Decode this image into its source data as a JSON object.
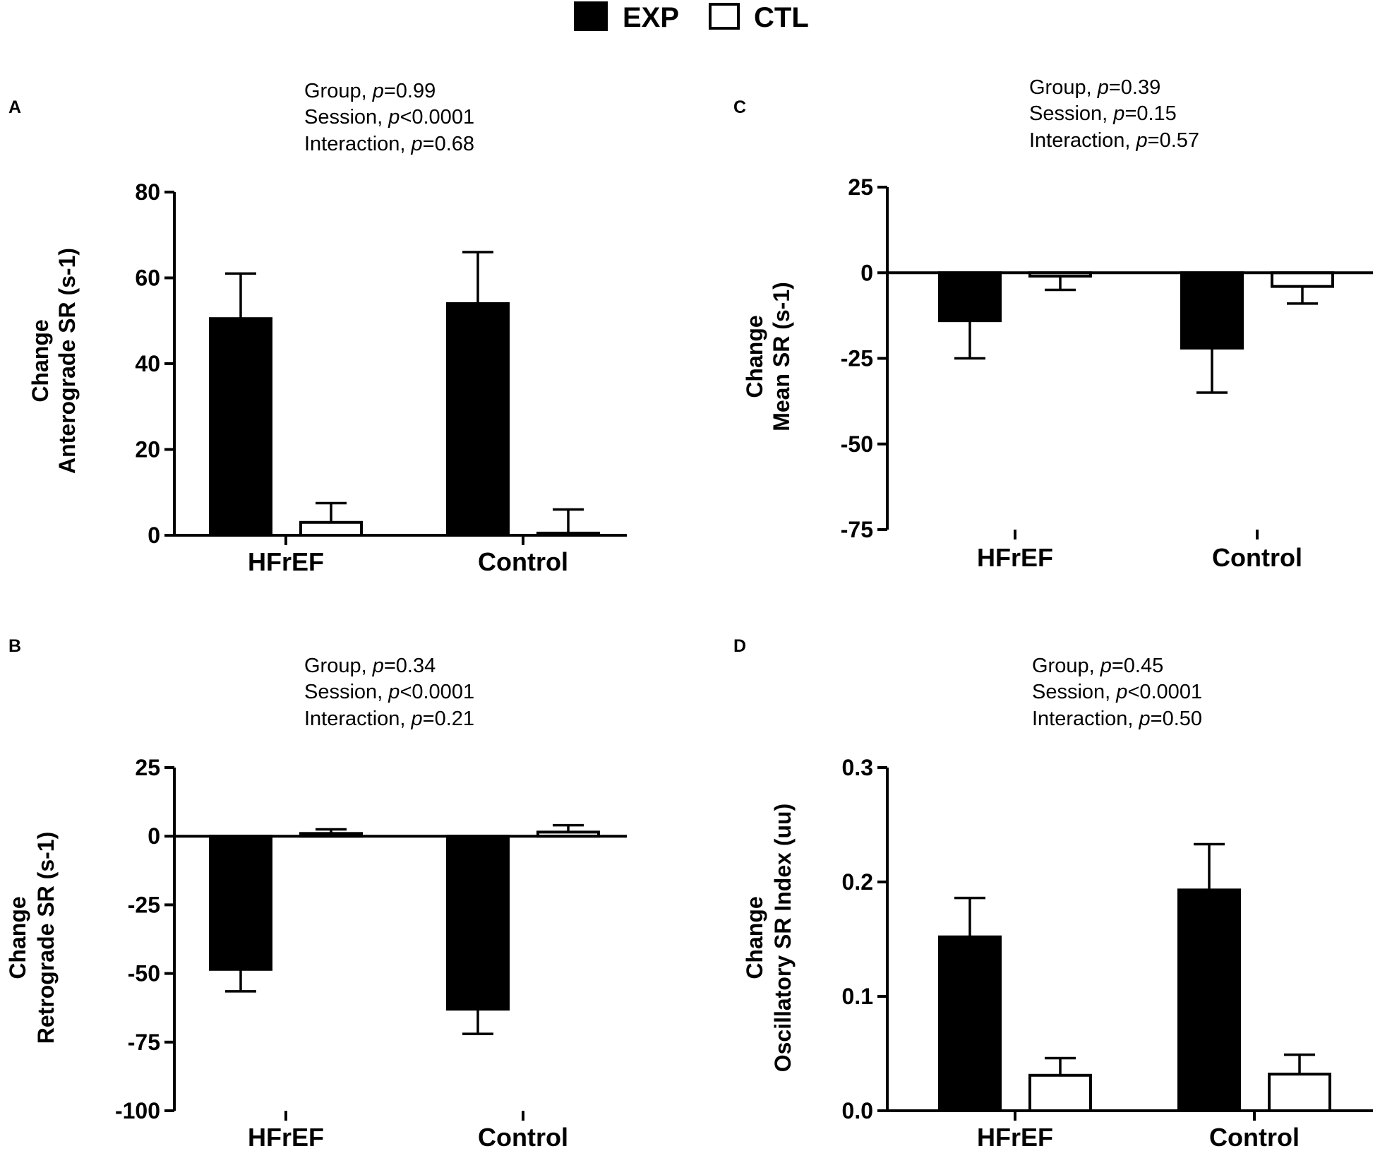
{
  "legend": {
    "entries": [
      {
        "label": "EXP",
        "fill": "#000000"
      },
      {
        "label": "CTL",
        "fill": "#ffffff"
      }
    ]
  },
  "chart_data": [
    {
      "id": "A",
      "panel_letter": "A",
      "type": "bar",
      "ylabel_lines": [
        "Change",
        "Anterograde SR (s-1)"
      ],
      "stats": [
        {
          "prefix": "Group, ",
          "p_sym": "p",
          "value": "=0.99"
        },
        {
          "prefix": "Session, ",
          "p_sym": "p",
          "value": "<0.0001"
        },
        {
          "prefix": "Interaction, ",
          "p_sym": "p",
          "value": "=0.68"
        }
      ],
      "categories": [
        "HFrEF",
        "Control"
      ],
      "ylim": [
        0,
        80
      ],
      "yticks": [
        0,
        20,
        40,
        60,
        80
      ],
      "ytick_labels": [
        "0",
        "20",
        "40",
        "60",
        "80"
      ],
      "series": [
        {
          "name": "EXP",
          "values": [
            50.5,
            54
          ],
          "errors": [
            10.5,
            12
          ]
        },
        {
          "name": "CTL",
          "values": [
            3,
            0.5
          ],
          "errors": [
            4.5,
            5.5
          ]
        }
      ]
    },
    {
      "id": "C",
      "panel_letter": "C",
      "type": "bar",
      "ylabel_lines": [
        "Change",
        "Mean SR (s-1)"
      ],
      "stats": [
        {
          "prefix": "Group, ",
          "p_sym": "p",
          "value": "=0.39"
        },
        {
          "prefix": "Session, ",
          "p_sym": "p",
          "value": "=0.15"
        },
        {
          "prefix": "Interaction, ",
          "p_sym": "p",
          "value": "=0.57"
        }
      ],
      "categories": [
        "HFrEF",
        "Control"
      ],
      "ylim": [
        -75,
        25
      ],
      "yticks": [
        -75,
        -50,
        -25,
        0,
        25
      ],
      "ytick_labels": [
        "-75",
        "-50",
        "-25",
        "0",
        "25"
      ],
      "series": [
        {
          "name": "EXP",
          "values": [
            -14,
            -22
          ],
          "errors": [
            11,
            13
          ]
        },
        {
          "name": "CTL",
          "values": [
            -1,
            -4
          ],
          "errors": [
            4,
            5
          ]
        }
      ]
    },
    {
      "id": "B",
      "panel_letter": "B",
      "type": "bar",
      "ylabel_lines": [
        "Change",
        "Retrograde SR (s-1)"
      ],
      "stats": [
        {
          "prefix": "Group, ",
          "p_sym": "p",
          "value": "=0.34"
        },
        {
          "prefix": "Session, ",
          "p_sym": "p",
          "value": "<0.0001"
        },
        {
          "prefix": "Interaction, ",
          "p_sym": "p",
          "value": "=0.21"
        }
      ],
      "categories": [
        "HFrEF",
        "Control"
      ],
      "ylim": [
        -100,
        25
      ],
      "yticks": [
        -100,
        -75,
        -50,
        -25,
        0,
        25
      ],
      "ytick_labels": [
        "-100",
        "-75",
        "-50",
        "-25",
        "0",
        "25"
      ],
      "series": [
        {
          "name": "EXP",
          "values": [
            -48.5,
            -63
          ],
          "errors": [
            8,
            9
          ]
        },
        {
          "name": "CTL",
          "values": [
            1,
            1.5
          ],
          "errors": [
            1.5,
            2.5
          ]
        }
      ]
    },
    {
      "id": "D",
      "panel_letter": "D",
      "type": "bar",
      "ylabel_lines": [
        "Change",
        "Oscillatory SR Index (uu)"
      ],
      "stats": [
        {
          "prefix": "Group, ",
          "p_sym": "p",
          "value": "=0.45"
        },
        {
          "prefix": "Session, ",
          "p_sym": "p",
          "value": "<0.0001"
        },
        {
          "prefix": "Interaction, ",
          "p_sym": "p",
          "value": "=0.50"
        }
      ],
      "categories": [
        "HFrEF",
        "Control"
      ],
      "ylim": [
        0,
        0.3
      ],
      "yticks": [
        0,
        0.1,
        0.2,
        0.3
      ],
      "ytick_labels": [
        "0.0",
        "0.1",
        "0.2",
        "0.3"
      ],
      "series": [
        {
          "name": "EXP",
          "values": [
            0.152,
            0.193
          ],
          "errors": [
            0.034,
            0.04
          ]
        },
        {
          "name": "CTL",
          "values": [
            0.031,
            0.032
          ],
          "errors": [
            0.015,
            0.017
          ]
        }
      ]
    }
  ]
}
